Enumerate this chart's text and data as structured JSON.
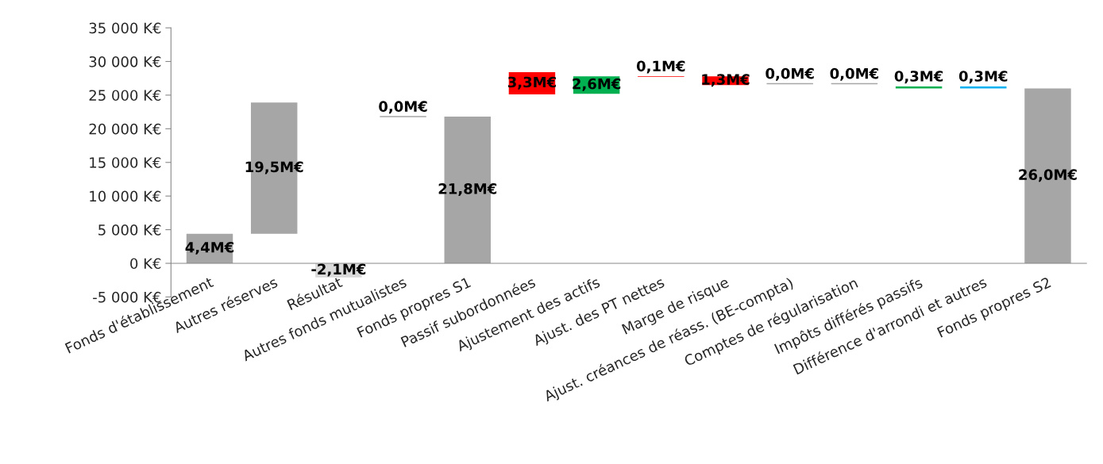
{
  "chart_data": {
    "type": "bar",
    "categories": [
      "Fonds d'établissement",
      "Autres réserves",
      "Résultat",
      "Autres fonds mutualistes",
      "Fonds propres S1",
      "Passif subordonnées",
      "Ajustement des actifs",
      "Ajust. des PT nettes",
      "Marge de risque",
      "Ajust. créances de réass. (BE-compta)",
      "Comptes de régularisation",
      "Impôts différés passifs",
      "Différence d'arrondi et autres",
      "Fonds propres S2"
    ],
    "values": [
      4.4,
      19.5,
      -2.1,
      0,
      21.8,
      3.3,
      2.6,
      0.1,
      1.3,
      0,
      0,
      0.3,
      0.3,
      26.0
    ],
    "base": [
      0,
      4.4,
      0,
      21.8,
      0,
      25.1,
      25.2,
      27.7,
      26.5,
      26.7,
      26.7,
      26.0,
      26.0,
      0
    ],
    "colors": [
      "#a6a6a6",
      "#a6a6a6",
      "#d9d9d9",
      "#a6a6a6",
      "#a6a6a6",
      "#ff0000",
      "#00b050",
      "#ff0000",
      "#ff0000",
      "#a6a6a6",
      "#a6a6a6",
      "#00b050",
      "#00b0f0",
      "#a6a6a6"
    ],
    "value_labels": [
      "4,4M€",
      "19,5M€",
      "-2,1M€",
      "0,0M€",
      "21,8M€",
      "3,3M€",
      "2,6M€",
      "0,1M€",
      "1,3M€",
      "0,0M€",
      "0,0M€",
      "0,3M€",
      "0,3M€",
      "26,0M€"
    ],
    "ylim": [
      -5,
      35
    ],
    "yticks": [
      {
        "value": -5,
        "label": "-5 000 K€"
      },
      {
        "value": 0,
        "label": "0 K€"
      },
      {
        "value": 5,
        "label": "5 000 K€"
      },
      {
        "value": 10,
        "label": "10 000 K€"
      },
      {
        "value": 15,
        "label": "15 000 K€"
      },
      {
        "value": 20,
        "label": "20 000 K€"
      },
      {
        "value": 25,
        "label": "25 000 K€"
      },
      {
        "value": 30,
        "label": "30 000 K€"
      },
      {
        "value": 35,
        "label": "35 000 K€"
      }
    ]
  }
}
